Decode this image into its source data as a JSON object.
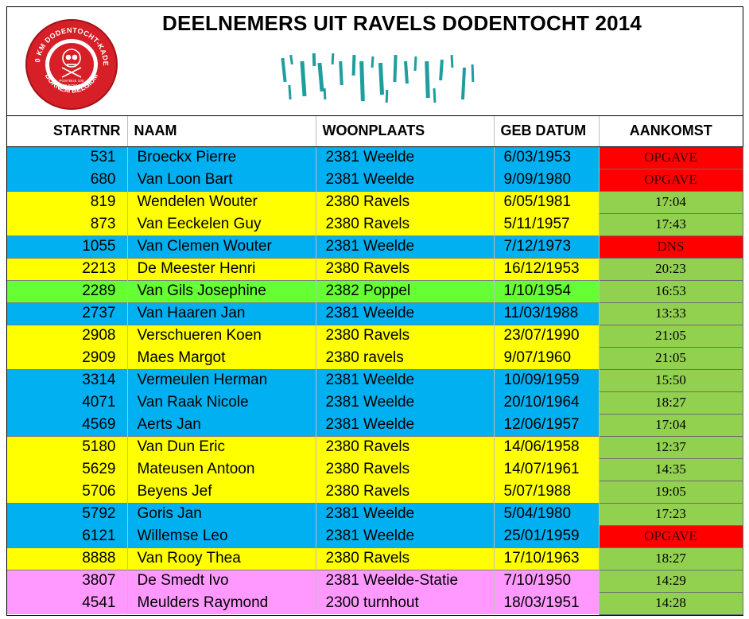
{
  "title": "DEELNEMERS UIT RAVELS DODENTOCHT 2014",
  "logo": {
    "arc_top": "100 KM DODENTOCHT-KADEE",
    "center_line1": "POSTBUS 100",
    "center_line2": "2880 BORNEM",
    "bottom": "BORNEM BELGIUM",
    "ring_color": "#d61f26",
    "rim_color": "#a11419"
  },
  "headers": {
    "startnr": "STARTNR",
    "naam": "NAAM",
    "woonplaats": "WOONPLAATS",
    "geb_datum": "GEB DATUM",
    "aankomst": "AANKOMST"
  },
  "colors": {
    "blue": "#00b0f0",
    "yellow": "#ffff00",
    "green": "#66ff33",
    "pink": "#ff99ff",
    "status_red": "#ff0000",
    "status_green": "#92d050",
    "status_red_text": "#3a0000",
    "stroke_teal": "#1f9e9e"
  },
  "rows": [
    {
      "startnr": "531",
      "naam": "Broeckx Pierre",
      "woonplaats": "2381 Weelde",
      "geb_datum": "6/03/1953",
      "aankomst": "OPGAVE",
      "row_color": "blue",
      "status": "red"
    },
    {
      "startnr": "680",
      "naam": "Van Loon Bart",
      "woonplaats": "2381 Weelde",
      "geb_datum": "9/09/1980",
      "aankomst": "OPGAVE",
      "row_color": "blue",
      "status": "red"
    },
    {
      "startnr": "819",
      "naam": "Wendelen Wouter",
      "woonplaats": "2380 Ravels",
      "geb_datum": "6/05/1981",
      "aankomst": "17:04",
      "row_color": "yellow",
      "status": "green"
    },
    {
      "startnr": "873",
      "naam": "Van Eeckelen Guy",
      "woonplaats": "2380 Ravels",
      "geb_datum": "5/11/1957",
      "aankomst": "17:43",
      "row_color": "yellow",
      "status": "green"
    },
    {
      "startnr": "1055",
      "naam": "Van Clemen Wouter",
      "woonplaats": "2381 Weelde",
      "geb_datum": "7/12/1973",
      "aankomst": "DNS",
      "row_color": "blue",
      "status": "red"
    },
    {
      "startnr": "2213",
      "naam": "De Meester Henri",
      "woonplaats": "2380 Ravels",
      "geb_datum": "16/12/1953",
      "aankomst": "20:23",
      "row_color": "yellow",
      "status": "green"
    },
    {
      "startnr": "2289",
      "naam": "Van Gils Josephine",
      "woonplaats": "2382 Poppel",
      "geb_datum": "1/10/1954",
      "aankomst": "16:53",
      "row_color": "green",
      "status": "green"
    },
    {
      "startnr": "2737",
      "naam": "Van Haaren Jan",
      "woonplaats": "2381 Weelde",
      "geb_datum": "11/03/1988",
      "aankomst": "13:33",
      "row_color": "blue",
      "status": "green"
    },
    {
      "startnr": "2908",
      "naam": "Verschueren Koen",
      "woonplaats": "2380 Ravels",
      "geb_datum": "23/07/1990",
      "aankomst": "21:05",
      "row_color": "yellow",
      "status": "green"
    },
    {
      "startnr": "2909",
      "naam": "Maes Margot",
      "woonplaats": "2380 ravels",
      "geb_datum": "9/07/1960",
      "aankomst": "21:05",
      "row_color": "yellow",
      "status": "green"
    },
    {
      "startnr": "3314",
      "naam": "Vermeulen Herman",
      "woonplaats": "2381 Weelde",
      "geb_datum": "10/09/1959",
      "aankomst": "15:50",
      "row_color": "blue",
      "status": "green"
    },
    {
      "startnr": "4071",
      "naam": "Van Raak Nicole",
      "woonplaats": "2381 Weelde",
      "geb_datum": "20/10/1964",
      "aankomst": "18:27",
      "row_color": "blue",
      "status": "green"
    },
    {
      "startnr": "4569",
      "naam": "Aerts Jan",
      "woonplaats": "2381 Weelde",
      "geb_datum": "12/06/1957",
      "aankomst": "17:04",
      "row_color": "blue",
      "status": "green"
    },
    {
      "startnr": "5180",
      "naam": "Van Dun Eric",
      "woonplaats": "2380 Ravels",
      "geb_datum": "14/06/1958",
      "aankomst": "12:37",
      "row_color": "yellow",
      "status": "green"
    },
    {
      "startnr": "5629",
      "naam": "Mateusen Antoon",
      "woonplaats": "2380 Ravels",
      "geb_datum": "14/07/1961",
      "aankomst": "14:35",
      "row_color": "yellow",
      "status": "green"
    },
    {
      "startnr": "5706",
      "naam": "Beyens Jef",
      "woonplaats": "2380 Ravels",
      "geb_datum": "5/07/1988",
      "aankomst": "19:05",
      "row_color": "yellow",
      "status": "green"
    },
    {
      "startnr": "5792",
      "naam": "Goris Jan",
      "woonplaats": "2381 Weelde",
      "geb_datum": "5/04/1980",
      "aankomst": "17:23",
      "row_color": "blue",
      "status": "green"
    },
    {
      "startnr": "6121",
      "naam": "Willemse Leo",
      "woonplaats": "2381 Weelde",
      "geb_datum": "25/01/1959",
      "aankomst": "OPGAVE",
      "row_color": "blue",
      "status": "red"
    },
    {
      "startnr": "8888",
      "naam": "Van Rooy Thea",
      "woonplaats": "2380 Ravels",
      "geb_datum": "17/10/1963",
      "aankomst": "18:27",
      "row_color": "yellow",
      "status": "green"
    },
    {
      "startnr": "3807",
      "naam": "De Smedt Ivo",
      "woonplaats": "2381 Weelde-Statie",
      "geb_datum": "7/10/1950",
      "aankomst": "14:29",
      "row_color": "pink",
      "status": "green"
    },
    {
      "startnr": "4541",
      "naam": "Meulders Raymond",
      "woonplaats": "2300 turnhout",
      "geb_datum": "18/03/1951",
      "aankomst": "14:28",
      "row_color": "pink",
      "status": "green"
    }
  ]
}
